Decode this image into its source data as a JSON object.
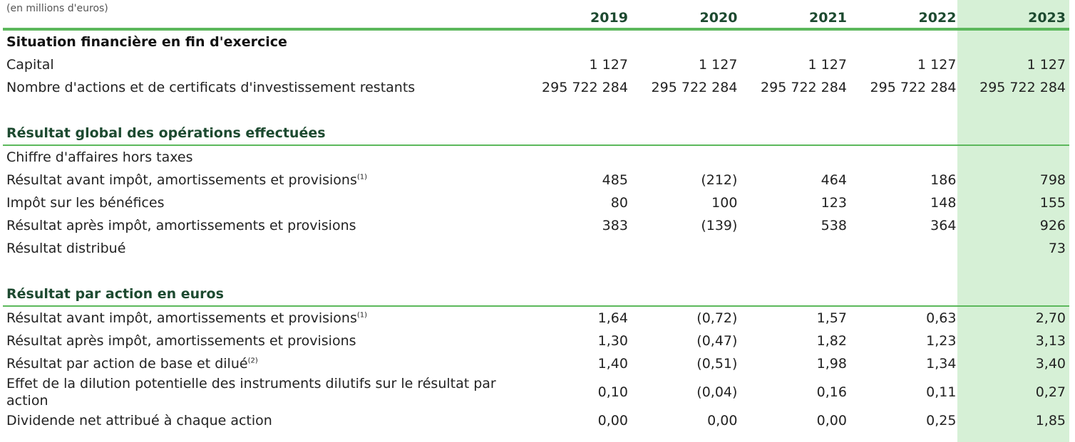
{
  "header": {
    "unit": "(en millions d'euros)",
    "years": [
      "2019",
      "2020",
      "2021",
      "2022",
      "2023"
    ]
  },
  "sections": [
    {
      "title": "Situation financière en fin d'exercice",
      "rows": [
        {
          "label": "Capital",
          "note": "",
          "values": [
            "1 127",
            "1 127",
            "1 127",
            "1 127",
            "1 127"
          ]
        },
        {
          "label": "Nombre d'actions et de certificats d'investissement restants",
          "note": "",
          "values": [
            "295 722 284",
            "295 722 284",
            "295 722 284",
            "295 722 284",
            "295 722 284"
          ]
        }
      ]
    },
    {
      "title": "Résultat global des opérations effectuées",
      "rows": [
        {
          "label": "Chiffre d'affaires hors taxes",
          "note": "",
          "values": [
            "",
            "",
            "",
            "",
            ""
          ]
        },
        {
          "label": "Résultat avant impôt, amortissements et provisions",
          "note": "(1)",
          "values": [
            "485",
            "(212)",
            "464",
            "186",
            "798"
          ]
        },
        {
          "label": "Impôt sur les bénéfices",
          "note": "",
          "values": [
            "80",
            "100",
            "123",
            "148",
            "155"
          ]
        },
        {
          "label": "Résultat après impôt, amortissements et provisions",
          "note": "",
          "values": [
            "383",
            "(139)",
            "538",
            "364",
            "926"
          ]
        },
        {
          "label": "Résultat distribué",
          "note": "",
          "values": [
            "",
            "",
            "",
            "",
            "73"
          ]
        }
      ]
    },
    {
      "title": "Résultat par action en euros",
      "rows": [
        {
          "label": "Résultat avant impôt, amortissements et provisions",
          "note": "(1)",
          "values": [
            "1,64",
            "(0,72)",
            "1,57",
            "0,63",
            "2,70"
          ]
        },
        {
          "label": "Résultat après impôt, amortissements et provisions",
          "note": "",
          "values": [
            "1,30",
            "(0,47)",
            "1,82",
            "1,23",
            "3,13"
          ]
        },
        {
          "label": "Résultat par action de base et dilué",
          "note": "(2)",
          "values": [
            "1,40",
            "(0,51)",
            "1,98",
            "1,34",
            "3,40"
          ]
        },
        {
          "label": "Effet de la dilution potentielle des instruments dilutifs sur le résultat par action",
          "note": "",
          "values": [
            "0,10",
            "(0,04)",
            "0,16",
            "0,11",
            "0,27"
          ]
        },
        {
          "label": "Dividende net attribué à chaque action",
          "note": "",
          "values": [
            "0,00",
            "0,00",
            "0,00",
            "0,25",
            "1,85"
          ]
        }
      ]
    }
  ],
  "colors": {
    "accent_green": "#5cb85c",
    "highlight_column": "#d6f0d6",
    "section_title": "#1d4a30"
  }
}
